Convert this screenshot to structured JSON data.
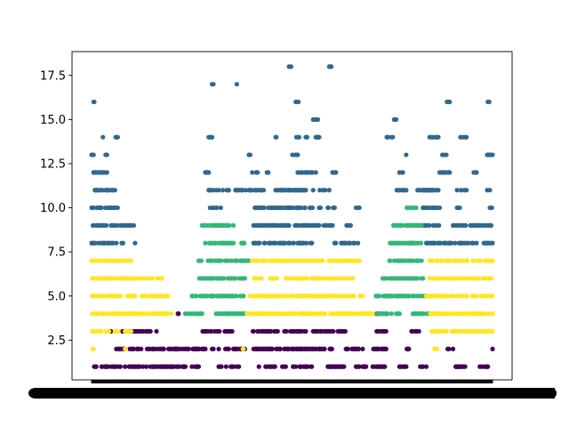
{
  "chart_data": {
    "type": "scatter",
    "ylim": [
      0.25,
      18.85
    ],
    "yticks": [
      "2.5",
      "5.0",
      "7.5",
      "10.0",
      "12.5",
      "15.0",
      "17.5"
    ],
    "ytick_values": [
      2.5,
      5.0,
      7.5,
      10.0,
      12.5,
      15.0,
      17.5
    ],
    "x_count": 600,
    "grid": false,
    "legend": "none",
    "series": [
      {
        "color": "#440154",
        "bands": [
          {
            "y": 1,
            "segments": [
              [
                4,
                7
              ],
              [
                15,
                17
              ],
              [
                20,
                26
              ],
              [
                30,
                45
              ],
              [
                50,
                140
              ],
              [
                150,
                160
              ],
              [
                190,
                195
              ],
              [
                200,
                220
              ],
              [
                245,
                250
              ],
              [
                260,
                275
              ],
              [
                285,
                290
              ],
              [
                300,
                330
              ],
              [
                350,
                380
              ],
              [
                395,
                400
              ],
              [
                405,
                440
              ],
              [
                460,
                470
              ],
              [
                490,
                500
              ],
              [
                540,
                545
              ],
              [
                545,
                560
              ],
              [
                580,
                592
              ]
            ]
          },
          {
            "y": 2,
            "segments": [
              [
                35,
                170
              ],
              [
                180,
                190
              ],
              [
                200,
                230
              ],
              [
                240,
                360
              ],
              [
                380,
                405
              ],
              [
                420,
                440
              ],
              [
                470,
                480
              ],
              [
                530,
                540
              ],
              [
                595,
                600
              ]
            ]
          },
          {
            "y": 3,
            "segments": [
              [
                25,
                32
              ],
              [
                45,
                100
              ],
              [
                165,
                210
              ],
              [
                240,
                320
              ],
              [
                330,
                380
              ],
              [
                425,
                440
              ],
              [
                475,
                490
              ]
            ]
          },
          {
            "y": 4,
            "segments": [
              [
                128,
                131
              ],
              [
                425,
                430
              ]
            ]
          }
        ]
      },
      {
        "color": "#31688e",
        "bands": [
          {
            "y": 8,
            "segments": [
              [
                0,
                38
              ],
              [
                45,
                50
              ],
              [
                60,
                65
              ],
              [
                242,
                260
              ],
              [
                265,
                330
              ],
              [
                360,
                400
              ],
              [
                475,
                485
              ],
              [
                500,
                600
              ]
            ]
          },
          {
            "y": 9,
            "segments": [
              [
                2,
                60
              ],
              [
                63,
                65
              ],
              [
                185,
                195
              ],
              [
                240,
                360
              ],
              [
                380,
                390
              ],
              [
                470,
                520
              ],
              [
                540,
                600
              ]
            ]
          },
          {
            "y": 10,
            "segments": [
              [
                0,
                40
              ],
              [
                175,
                195
              ],
              [
                240,
                260
              ],
              [
                260,
                330
              ],
              [
                340,
                365
              ],
              [
                395,
                400
              ],
              [
                495,
                520
              ],
              [
                545,
                550
              ],
              [
                595,
                600
              ]
            ]
          },
          {
            "y": 11,
            "segments": [
              [
                3,
                35
              ],
              [
                175,
                210
              ],
              [
                215,
                230
              ],
              [
                235,
                260
              ],
              [
                275,
                320
              ],
              [
                330,
                355
              ],
              [
                455,
                470
              ],
              [
                485,
                500
              ],
              [
                500,
                520
              ],
              [
                545,
                560
              ],
              [
                590,
                595
              ]
            ]
          },
          {
            "y": 12,
            "segments": [
              [
                3,
                25
              ],
              [
                170,
                175
              ],
              [
                240,
                250
              ],
              [
                260,
                265
              ],
              [
                305,
                335
              ],
              [
                360,
                365
              ],
              [
                460,
                465
              ],
              [
                520,
                535
              ],
              [
                570,
                575
              ]
            ]
          },
          {
            "y": 13,
            "segments": [
              [
                0,
                3
              ],
              [
                20,
                25
              ],
              [
                235,
                240
              ],
              [
                300,
                310
              ],
              [
                470,
                475
              ],
              [
                520,
                530
              ],
              [
                590,
                600
              ]
            ]
          },
          {
            "y": 14,
            "segments": [
              [
                15,
                20
              ],
              [
                35,
                40
              ],
              [
                175,
                180
              ],
              [
                275,
                280
              ],
              [
                305,
                310
              ],
              [
                320,
                325
              ],
              [
                335,
                340
              ],
              [
                440,
                450
              ],
              [
                505,
                520
              ],
              [
                550,
                560
              ]
            ]
          },
          {
            "y": 15,
            "segments": [
              [
                330,
                340
              ],
              [
                450,
                455
              ]
            ]
          },
          {
            "y": 16,
            "segments": [
              [
                2,
                5
              ],
              [
                305,
                310
              ],
              [
                530,
                535
              ],
              [
                590,
                595
              ]
            ]
          },
          {
            "y": 17,
            "segments": [
              [
                180,
                183
              ],
              [
                215,
                218
              ],
              [
                228,
                231
              ]
            ]
          },
          {
            "y": 18,
            "segments": [
              [
                295,
                298
              ],
              [
                355,
                358
              ]
            ]
          }
        ]
      },
      {
        "color": "#35b779",
        "bands": [
          {
            "y": 4,
            "segments": [
              [
                140,
                165
              ],
              [
                185,
                230
              ],
              [
                425,
                460
              ],
              [
                480,
                505
              ]
            ]
          },
          {
            "y": 5,
            "segments": [
              [
                150,
                230
              ],
              [
                425,
                500
              ]
            ]
          },
          {
            "y": 6,
            "segments": [
              [
                160,
                230
              ],
              [
                435,
                495
              ]
            ]
          },
          {
            "y": 7,
            "segments": [
              [
                160,
                235
              ],
              [
                445,
                495
              ]
            ]
          },
          {
            "y": 8,
            "segments": [
              [
                170,
                230
              ],
              [
                445,
                495
              ]
            ]
          },
          {
            "y": 9,
            "segments": [
              [
                165,
                215
              ],
              [
                450,
                495
              ]
            ]
          },
          {
            "y": 10,
            "segments": [
              [
                470,
                485
              ]
            ]
          }
        ]
      },
      {
        "color": "#fde725",
        "bands": [
          {
            "y": 2,
            "segments": [
              [
                0,
                10
              ],
              [
                50,
                55
              ],
              [
                225,
                230
              ],
              [
                510,
                520
              ]
            ]
          },
          {
            "y": 3,
            "segments": [
              [
                0,
                30
              ],
              [
                35,
                40
              ],
              [
                50,
                60
              ],
              [
                505,
                600
              ]
            ]
          },
          {
            "y": 4,
            "segments": [
              [
                0,
                120
              ],
              [
                230,
                420
              ],
              [
                505,
                600
              ]
            ]
          },
          {
            "y": 5,
            "segments": [
              [
                0,
                20
              ],
              [
                25,
                115
              ],
              [
                230,
                405
              ],
              [
                500,
                600
              ]
            ]
          },
          {
            "y": 6,
            "segments": [
              [
                0,
                105
              ],
              [
                235,
                390
              ],
              [
                505,
                600
              ]
            ]
          },
          {
            "y": 7,
            "segments": [
              [
                0,
                60
              ],
              [
                240,
                400
              ],
              [
                505,
                600
              ]
            ]
          }
        ]
      }
    ]
  }
}
